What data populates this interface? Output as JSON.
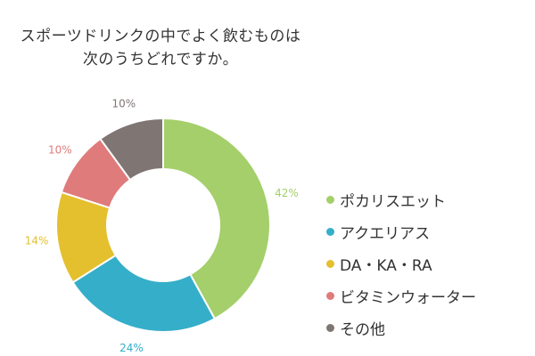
{
  "title_lines": [
    "スポーツドリンクの中でよく飲むものは",
    "次のうちどれですか。"
  ],
  "chart_data": {
    "type": "pie",
    "donut": true,
    "title": "スポーツドリンクの中でよく飲むものは次のうちどれですか。",
    "categories": [
      "ポカリスエット",
      "アクエリアス",
      "DA・KA・RA",
      "ビタミンウォーター",
      "その他"
    ],
    "values": [
      42,
      24,
      14,
      10,
      10
    ],
    "labels": [
      "42%",
      "24%",
      "14%",
      "10%",
      "10%"
    ],
    "unit": "%",
    "colors": [
      "#a4cf6a",
      "#35aec9",
      "#e4c02e",
      "#e07b7b",
      "#7f7674"
    ],
    "legend_position": "right"
  }
}
